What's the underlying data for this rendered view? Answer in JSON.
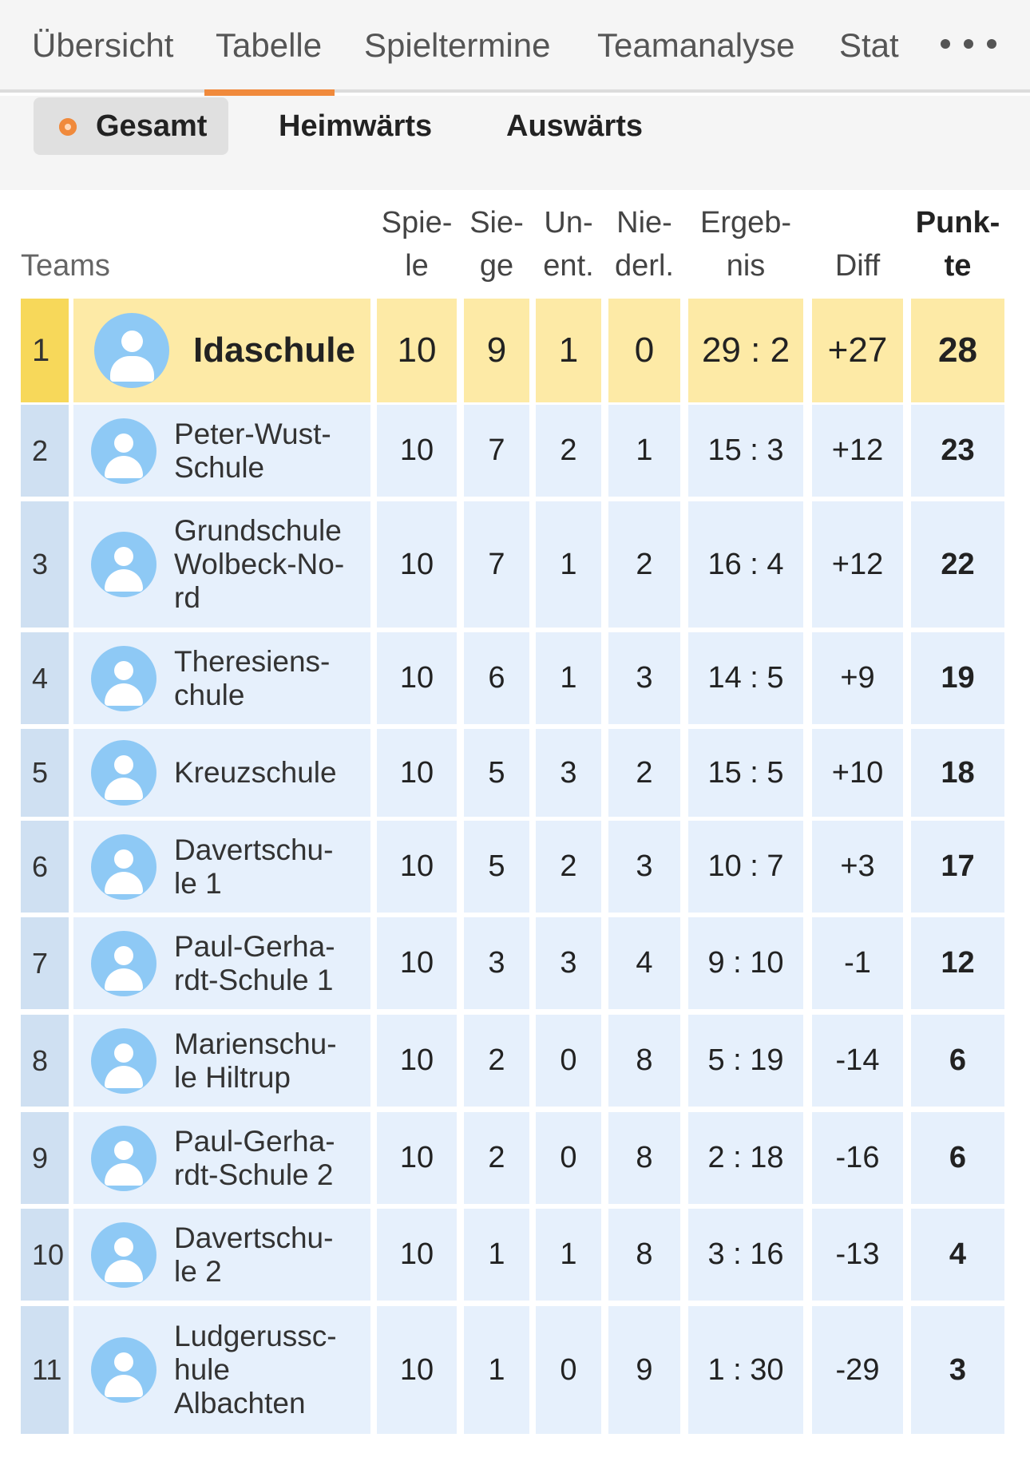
{
  "tabs": [
    {
      "label": "Übersicht"
    },
    {
      "label": "Tabelle"
    },
    {
      "label": "Spieltermine"
    },
    {
      "label": "Teamanalyse"
    },
    {
      "label": "Stat"
    }
  ],
  "active_tab": "Tabelle",
  "more_icon": "more-horizontal-icon",
  "filters": [
    {
      "label": "Gesamt",
      "active": true
    },
    {
      "label": "Heimwärts",
      "active": false
    },
    {
      "label": "Auswärts",
      "active": false
    }
  ],
  "colors": {
    "accent": "#f08a3c",
    "leader_row": "#fdeaa6",
    "leader_rank": "#f7d85a",
    "row": "#e6f0fc",
    "rank_cell": "#cfe0f2",
    "avatar": "#8ec9f5"
  },
  "header": {
    "teams": "Teams",
    "spiele": [
      "Spie-",
      "le"
    ],
    "siege": [
      "Sie-",
      "ge"
    ],
    "unent": [
      "Un-",
      "ent."
    ],
    "niederl": [
      "Nie-",
      "derl."
    ],
    "ergebnis": [
      "Ergeb-",
      "nis"
    ],
    "diff": "Diff",
    "punkte": [
      "Punk-",
      "te"
    ]
  },
  "rows": [
    {
      "rank": "1",
      "team": "Idaschule",
      "spiele": "10",
      "siege": "9",
      "unent": "1",
      "niederl": "0",
      "ergebnis": "29 : 2",
      "diff": "+27",
      "punkte": "28"
    },
    {
      "rank": "2",
      "team": "Peter-Wust-\nSchule",
      "spiele": "10",
      "siege": "7",
      "unent": "2",
      "niederl": "1",
      "ergebnis": "15 : 3",
      "diff": "+12",
      "punkte": "23"
    },
    {
      "rank": "3",
      "team": "Grundschule\nWolbeck-No-\nrd",
      "spiele": "10",
      "siege": "7",
      "unent": "1",
      "niederl": "2",
      "ergebnis": "16 : 4",
      "diff": "+12",
      "punkte": "22"
    },
    {
      "rank": "4",
      "team": "Theresiens-\nchule",
      "spiele": "10",
      "siege": "6",
      "unent": "1",
      "niederl": "3",
      "ergebnis": "14 : 5",
      "diff": "+9",
      "punkte": "19"
    },
    {
      "rank": "5",
      "team": "Kreuzschule",
      "spiele": "10",
      "siege": "5",
      "unent": "3",
      "niederl": "2",
      "ergebnis": "15 : 5",
      "diff": "+10",
      "punkte": "18"
    },
    {
      "rank": "6",
      "team": "Davertschu-\nle 1",
      "spiele": "10",
      "siege": "5",
      "unent": "2",
      "niederl": "3",
      "ergebnis": "10 : 7",
      "diff": "+3",
      "punkte": "17"
    },
    {
      "rank": "7",
      "team": "Paul-Gerha-\nrdt-Schule 1",
      "spiele": "10",
      "siege": "3",
      "unent": "3",
      "niederl": "4",
      "ergebnis": "9 : 10",
      "diff": "-1",
      "punkte": "12"
    },
    {
      "rank": "8",
      "team": "Marienschu-\nle Hiltrup",
      "spiele": "10",
      "siege": "2",
      "unent": "0",
      "niederl": "8",
      "ergebnis": "5 : 19",
      "diff": "-14",
      "punkte": "6"
    },
    {
      "rank": "9",
      "team": "Paul-Gerha-\nrdt-Schule 2",
      "spiele": "10",
      "siege": "2",
      "unent": "0",
      "niederl": "8",
      "ergebnis": "2 : 18",
      "diff": "-16",
      "punkte": "6"
    },
    {
      "rank": "10",
      "team": "Davertschu-\nle 2",
      "spiele": "10",
      "siege": "1",
      "unent": "1",
      "niederl": "8",
      "ergebnis": "3 : 16",
      "diff": "-13",
      "punkte": "4"
    },
    {
      "rank": "11",
      "team": "Ludgerussc-\nhule\nAlbachten",
      "spiele": "10",
      "siege": "1",
      "unent": "0",
      "niederl": "9",
      "ergebnis": "1 : 30",
      "diff": "-29",
      "punkte": "3"
    }
  ]
}
